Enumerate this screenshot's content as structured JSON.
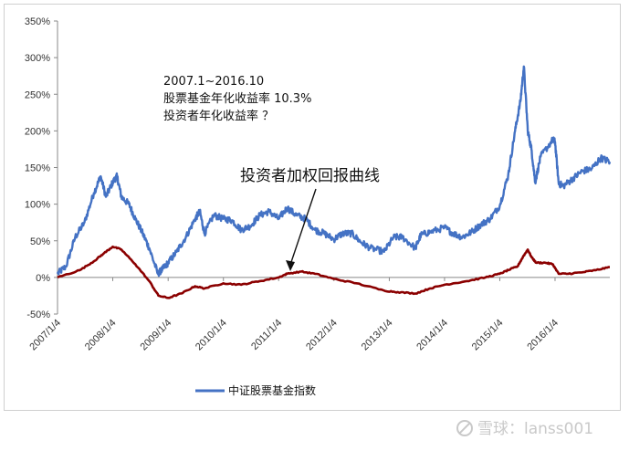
{
  "chart_data": {
    "type": "line",
    "ylim": [
      -50,
      350
    ],
    "yticks": [
      350,
      300,
      250,
      200,
      150,
      100,
      50,
      0,
      -50
    ],
    "ytick_labels": [
      "350%",
      "300%",
      "250%",
      "200%",
      "150%",
      "100%",
      "50%",
      "0%",
      "-50%"
    ],
    "xlim": [
      "2007-01-04",
      "2016-12-31"
    ],
    "xticks": [
      "2007-01-04",
      "2008-01-04",
      "2009-01-04",
      "2010-01-04",
      "2011-01-04",
      "2012-01-04",
      "2013-01-04",
      "2014-01-04",
      "2015-01-04",
      "2016-01-04"
    ],
    "xtick_labels": [
      "2007/1/4",
      "2008/1/4",
      "2009/1/4",
      "2010/1/4",
      "2011/1/4",
      "2012/1/4",
      "2013/1/4",
      "2014/1/4",
      "2015/1/4",
      "2016/1/4"
    ],
    "grid": false,
    "legend_position": "bottom",
    "series": [
      {
        "name": "中证股票基金指数",
        "color": "#4472C4",
        "points": [
          [
            "2007-01-04",
            5
          ],
          [
            "2007-03-01",
            15
          ],
          [
            "2007-05-01",
            55
          ],
          [
            "2007-07-01",
            75
          ],
          [
            "2007-09-01",
            115
          ],
          [
            "2007-10-16",
            138
          ],
          [
            "2007-11-20",
            110
          ],
          [
            "2008-01-04",
            130
          ],
          [
            "2008-02-01",
            138
          ],
          [
            "2008-03-01",
            110
          ],
          [
            "2008-04-20",
            100
          ],
          [
            "2008-06-01",
            80
          ],
          [
            "2008-07-20",
            60
          ],
          [
            "2008-09-01",
            40
          ],
          [
            "2008-10-28",
            5
          ],
          [
            "2008-12-01",
            12
          ],
          [
            "2009-01-04",
            20
          ],
          [
            "2009-03-01",
            35
          ],
          [
            "2009-05-01",
            55
          ],
          [
            "2009-07-01",
            80
          ],
          [
            "2009-08-01",
            90
          ],
          [
            "2009-09-01",
            60
          ],
          [
            "2009-11-01",
            85
          ],
          [
            "2010-01-04",
            80
          ],
          [
            "2010-03-01",
            78
          ],
          [
            "2010-05-01",
            65
          ],
          [
            "2010-07-01",
            70
          ],
          [
            "2010-09-01",
            85
          ],
          [
            "2010-11-01",
            90
          ],
          [
            "2011-01-04",
            80
          ],
          [
            "2011-03-01",
            95
          ],
          [
            "2011-05-01",
            85
          ],
          [
            "2011-07-01",
            80
          ],
          [
            "2011-09-01",
            65
          ],
          [
            "2011-11-01",
            60
          ],
          [
            "2012-01-04",
            52
          ],
          [
            "2012-03-01",
            60
          ],
          [
            "2012-05-01",
            60
          ],
          [
            "2012-07-01",
            48
          ],
          [
            "2012-09-01",
            40
          ],
          [
            "2012-12-01",
            35
          ],
          [
            "2013-02-01",
            55
          ],
          [
            "2013-04-01",
            55
          ],
          [
            "2013-06-25",
            40
          ],
          [
            "2013-08-01",
            58
          ],
          [
            "2013-10-01",
            62
          ],
          [
            "2014-01-04",
            68
          ],
          [
            "2014-03-01",
            60
          ],
          [
            "2014-05-01",
            55
          ],
          [
            "2014-07-01",
            62
          ],
          [
            "2014-09-01",
            72
          ],
          [
            "2014-11-01",
            80
          ],
          [
            "2015-01-04",
            98
          ],
          [
            "2015-03-01",
            140
          ],
          [
            "2015-04-15",
            200
          ],
          [
            "2015-05-20",
            240
          ],
          [
            "2015-06-12",
            288
          ],
          [
            "2015-07-08",
            200
          ],
          [
            "2015-08-01",
            175
          ],
          [
            "2015-08-26",
            130
          ],
          [
            "2015-10-01",
            165
          ],
          [
            "2015-12-20",
            188
          ],
          [
            "2016-01-04",
            185
          ],
          [
            "2016-01-28",
            128
          ],
          [
            "2016-03-01",
            125
          ],
          [
            "2016-05-01",
            135
          ],
          [
            "2016-07-01",
            145
          ],
          [
            "2016-09-01",
            148
          ],
          [
            "2016-11-01",
            163
          ],
          [
            "2016-12-31",
            158
          ]
        ]
      },
      {
        "color": "#8B0000",
        "points": [
          [
            "2007-01-04",
            0
          ],
          [
            "2007-06-01",
            10
          ],
          [
            "2007-09-01",
            22
          ],
          [
            "2007-11-01",
            32
          ],
          [
            "2008-01-04",
            42
          ],
          [
            "2008-03-01",
            38
          ],
          [
            "2008-06-01",
            18
          ],
          [
            "2008-09-01",
            -5
          ],
          [
            "2008-11-01",
            -25
          ],
          [
            "2009-01-04",
            -28
          ],
          [
            "2009-04-01",
            -22
          ],
          [
            "2009-07-01",
            -12
          ],
          [
            "2009-09-01",
            -15
          ],
          [
            "2010-01-04",
            -8
          ],
          [
            "2010-05-01",
            -10
          ],
          [
            "2010-09-01",
            -5
          ],
          [
            "2011-01-04",
            0
          ],
          [
            "2011-03-01",
            5
          ],
          [
            "2011-06-01",
            8
          ],
          [
            "2011-09-01",
            5
          ],
          [
            "2012-01-04",
            -2
          ],
          [
            "2012-06-01",
            -8
          ],
          [
            "2012-12-01",
            -18
          ],
          [
            "2013-03-01",
            -20
          ],
          [
            "2013-06-25",
            -22
          ],
          [
            "2013-10-01",
            -15
          ],
          [
            "2014-01-04",
            -10
          ],
          [
            "2014-06-01",
            -5
          ],
          [
            "2014-10-01",
            0
          ],
          [
            "2015-01-04",
            5
          ],
          [
            "2015-03-01",
            10
          ],
          [
            "2015-05-01",
            15
          ],
          [
            "2015-06-12",
            30
          ],
          [
            "2015-07-08",
            38
          ],
          [
            "2015-08-01",
            28
          ],
          [
            "2015-09-01",
            20
          ],
          [
            "2015-11-01",
            20
          ],
          [
            "2015-12-20",
            18
          ],
          [
            "2016-01-28",
            5
          ],
          [
            "2016-04-01",
            5
          ],
          [
            "2016-07-01",
            7
          ],
          [
            "2016-10-01",
            10
          ],
          [
            "2016-12-31",
            14
          ]
        ]
      }
    ],
    "annotations": {
      "period": "2007.1~2016.10",
      "fund_return": "股票基金年化收益率 10.3%",
      "investor_return": "投资者年化收益率   ？",
      "weighted_label": "投资者加权回报曲线"
    },
    "legend_label": "中证股票基金指数"
  },
  "watermark": {
    "text": "雪球：lanss001"
  }
}
